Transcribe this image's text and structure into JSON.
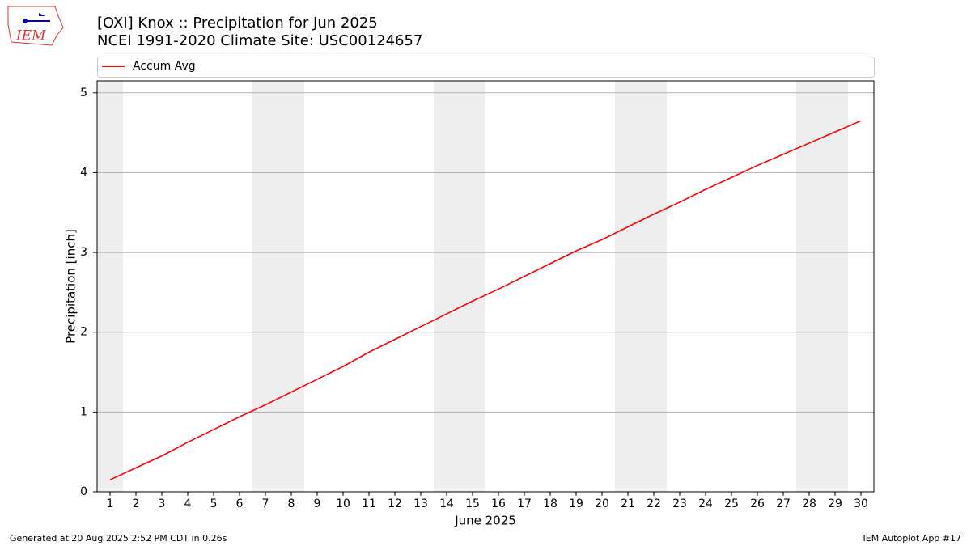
{
  "chart_data": {
    "type": "line",
    "title": "[OXI] Knox :: Precipitation for Jun 2025",
    "subtitle": "NCEI 1991-2020 Climate Site: USC00124657",
    "x_label": "June 2025",
    "y_label": "Precipitation [inch]",
    "logo_text": "IEM",
    "footer_left": "Generated at 20 Aug 2025 2:52 PM CDT in 0.26s",
    "footer_right": "IEM Autoplot App #17",
    "legend": "top",
    "grid": true,
    "shaded_days": [
      1,
      7,
      8,
      14,
      15,
      21,
      22,
      28,
      29
    ],
    "x": [
      1,
      2,
      3,
      4,
      5,
      6,
      7,
      8,
      9,
      10,
      11,
      12,
      13,
      14,
      15,
      16,
      17,
      18,
      19,
      20,
      21,
      22,
      23,
      24,
      25,
      26,
      27,
      28,
      29,
      30
    ],
    "series": [
      {
        "name": "Accum Avg",
        "color": "#ff0000",
        "values": [
          0.15,
          0.3,
          0.45,
          0.62,
          0.78,
          0.94,
          1.09,
          1.25,
          1.41,
          1.57,
          1.75,
          1.91,
          2.07,
          2.23,
          2.39,
          2.54,
          2.7,
          2.86,
          3.02,
          3.16,
          3.32,
          3.48,
          3.63,
          3.79,
          3.94,
          4.09,
          4.23,
          4.37,
          4.51,
          4.65
        ]
      }
    ],
    "xlim": [
      0.5,
      30.5
    ],
    "xticks": [
      1,
      2,
      3,
      4,
      5,
      6,
      7,
      8,
      9,
      10,
      11,
      12,
      13,
      14,
      15,
      16,
      17,
      18,
      19,
      20,
      21,
      22,
      23,
      24,
      25,
      26,
      27,
      28,
      29,
      30
    ],
    "ylim": [
      0,
      5.15
    ],
    "yticks": [
      0,
      1,
      2,
      3,
      4,
      5
    ]
  }
}
